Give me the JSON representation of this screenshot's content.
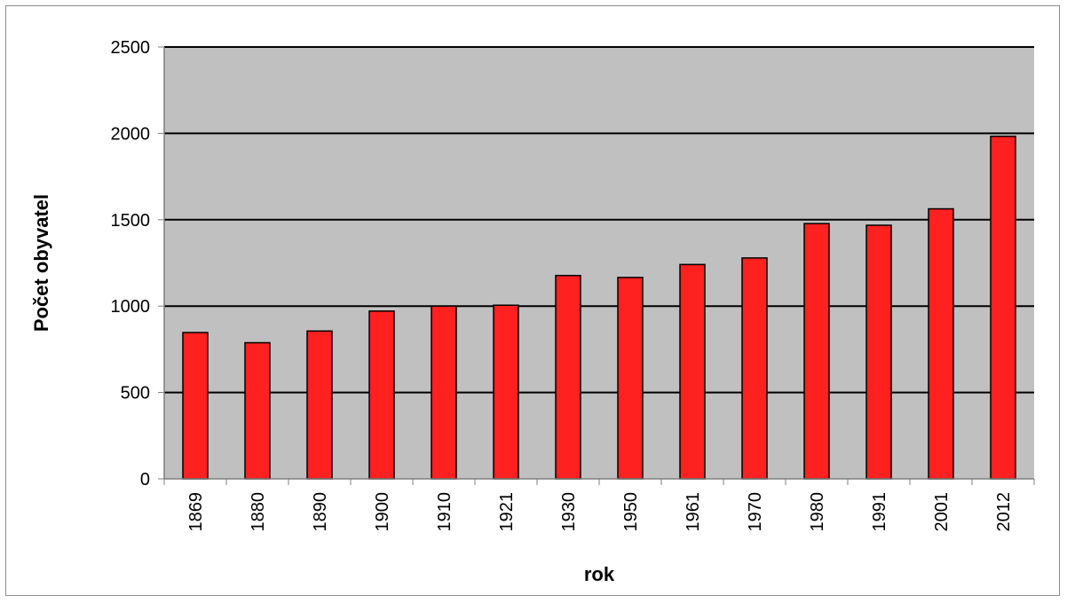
{
  "chart_data": {
    "type": "bar",
    "title": "",
    "xlabel": "rok",
    "ylabel": "Počet obyvatel",
    "categories": [
      "1869",
      "1880",
      "1890",
      "1900",
      "1910",
      "1921",
      "1930",
      "1950",
      "1961",
      "1970",
      "1980",
      "1991",
      "2001",
      "2012"
    ],
    "values": [
      847,
      788,
      856,
      971,
      1000,
      1005,
      1177,
      1166,
      1241,
      1279,
      1478,
      1468,
      1563,
      1983
    ],
    "ylim": [
      0,
      2500
    ],
    "yticks": [
      0,
      500,
      1000,
      1500,
      2000,
      2500
    ],
    "grid": true,
    "legend": "none",
    "colors": {
      "bar_fill": "#ff2020",
      "bar_stroke": "#000000",
      "plot_background": "#c0c0c0",
      "gridline": "#000000"
    }
  }
}
